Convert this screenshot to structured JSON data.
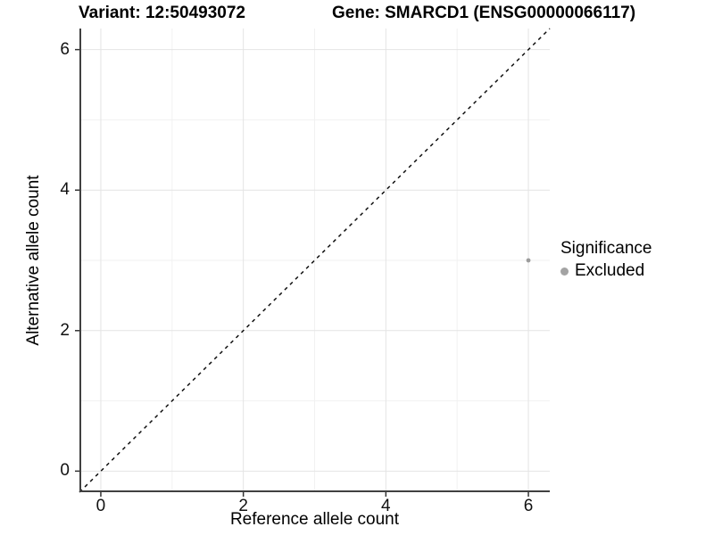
{
  "header": {
    "variant_title": "Variant: 12:50493072",
    "gene_title": "Gene: SMARCD1 (ENSG00000066117)"
  },
  "axes": {
    "x": {
      "label": "Reference allele count",
      "tick_labels": [
        "0",
        "2",
        "4",
        "6"
      ]
    },
    "y": {
      "label": "Alternative allele count",
      "tick_labels": [
        "0",
        "2",
        "4",
        "6"
      ]
    }
  },
  "legend": {
    "title": "Significance",
    "items": [
      {
        "label": "Excluded",
        "marker": "circle",
        "color": "#a3a3a3"
      }
    ]
  },
  "colors": {
    "background": "#ffffff",
    "panel_background": "#ffffff",
    "grid_major": "#e4e4e4",
    "grid_minor": "#f1f1f1",
    "axis_line": "#404040",
    "tick_mark": "#333333",
    "identity_line": "#111111",
    "point": "#9c9c9c",
    "text": "#000000"
  },
  "chart_data": {
    "type": "scatter",
    "title": "Variant: 12:50493072 | Gene: SMARCD1 (ENSG00000066117)",
    "xlabel": "Reference allele count",
    "ylabel": "Alternative allele count",
    "xlim": [
      -0.3,
      6.3
    ],
    "ylim": [
      -0.3,
      6.3
    ],
    "x_ticks": [
      0,
      2,
      4,
      6
    ],
    "y_ticks": [
      0,
      2,
      4,
      6
    ],
    "x_minor_ticks": [
      1,
      3,
      5
    ],
    "y_minor_ticks": [
      1,
      3,
      5
    ],
    "grid": "major+minor",
    "legend_position": "right",
    "series": [
      {
        "name": "Excluded",
        "color": "#9c9c9c",
        "marker": "circle",
        "points": [
          {
            "x": 6,
            "y": 3
          }
        ]
      }
    ],
    "annotations": [
      {
        "type": "abline",
        "slope": 1,
        "intercept": 0,
        "style": "dashed",
        "color": "#111111",
        "note": "y = x identity diagonal"
      }
    ]
  }
}
